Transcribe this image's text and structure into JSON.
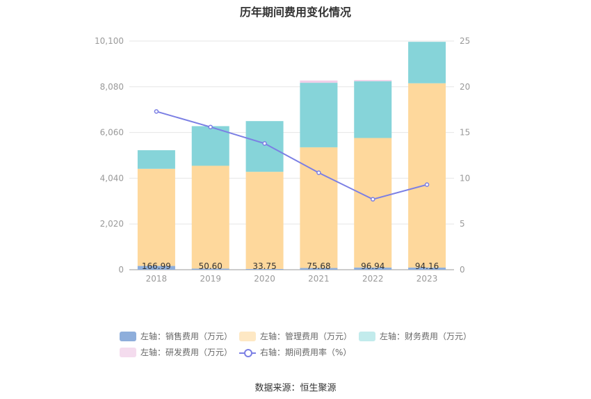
{
  "chart_data": {
    "type": "bar",
    "title": "历年期间费用变化情况",
    "categories": [
      "2018",
      "2019",
      "2020",
      "2021",
      "2022",
      "2023"
    ],
    "left_axis": {
      "ticks": [
        "0",
        "2,020",
        "4,040",
        "6,060",
        "8,080",
        "10,100"
      ],
      "ylim": [
        0,
        10100
      ]
    },
    "right_axis": {
      "ticks": [
        "0",
        "5",
        "10",
        "15",
        "20",
        "25"
      ],
      "ylim": [
        0,
        25
      ]
    },
    "series": [
      {
        "name": "左轴：销售费用（万元）",
        "type": "bar",
        "axis": "left",
        "color": "#8eaedb",
        "values": [
          166.99,
          50.6,
          33.75,
          75.68,
          96.94,
          94.16
        ],
        "labels": [
          "166.99",
          "50.60",
          "33.75",
          "75.68",
          "96.94",
          "94.16"
        ]
      },
      {
        "name": "左轴：管理费用（万元）",
        "type": "bar",
        "axis": "left",
        "color": "#fed89c",
        "values": [
          4290,
          4540,
          4290,
          5330,
          5720,
          8140
        ],
        "labels": []
      },
      {
        "name": "左轴：财务费用（万元）",
        "type": "bar",
        "axis": "left",
        "color": "#86d4d9",
        "values": [
          820,
          1750,
          2240,
          2850,
          2510,
          1830
        ],
        "labels": []
      },
      {
        "name": "左轴：研发费用（万元）",
        "type": "bar",
        "axis": "left",
        "color": "#f0cfe8",
        "values": [
          0,
          0,
          0,
          100,
          50,
          0
        ],
        "labels": []
      },
      {
        "name": "右轴：期间费用率（%）",
        "type": "line",
        "axis": "right",
        "color": "#7b7fe4",
        "values": [
          17.3,
          15.6,
          13.8,
          10.6,
          7.7,
          9.3
        ]
      }
    ],
    "grid": true,
    "legend_position": "bottom"
  },
  "source_text": "数据来源：恒生聚源"
}
